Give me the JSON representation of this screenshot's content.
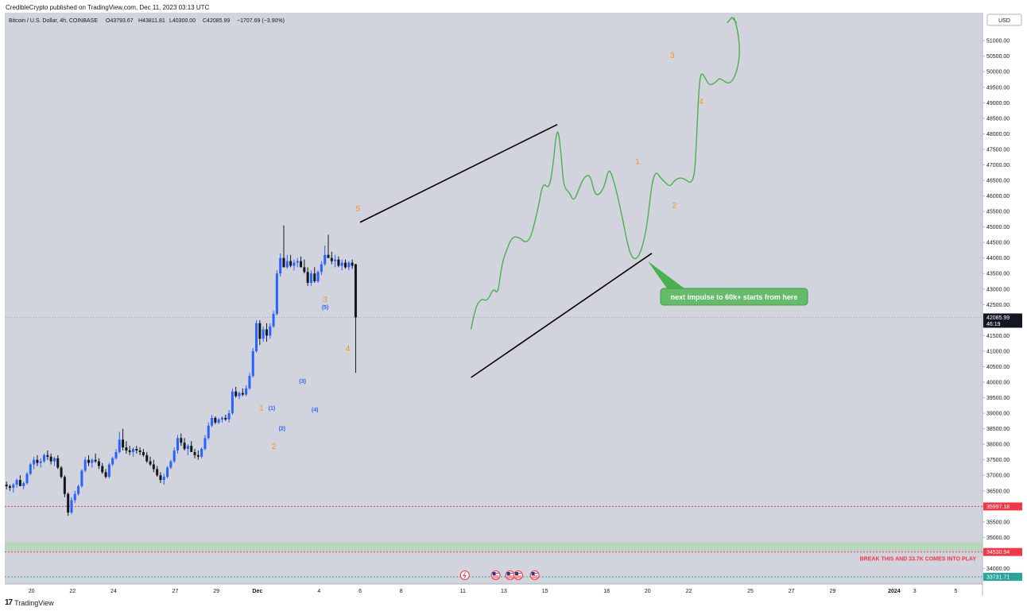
{
  "publisher": "CredibleCrypto published on TradingView.com, Dec 11, 2023 03:13 UTC",
  "footer_brand": "TradingView",
  "footer_logo": "17",
  "chart_data": {
    "type": "candlestick",
    "legend": "Bitcoin / U.S. Dollar, 4h, COINBASE",
    "ohlc_legend": {
      "o": "O43793.67",
      "h": "H43811.81",
      "l": "L40300.00",
      "c": "C42085.99",
      "chg": "−1707.69 (−3.90%)"
    },
    "currency": "USD",
    "ylim": [
      33500,
      51900
    ],
    "y_ticks": [
      "34000.00",
      "34500.00",
      "35000.00",
      "35500.00",
      "36000.00",
      "36500.00",
      "37000.00",
      "37500.00",
      "38000.00",
      "38500.00",
      "39000.00",
      "39500.00",
      "40000.00",
      "40500.00",
      "41000.00",
      "41500.00",
      "42000.00",
      "42500.00",
      "43000.00",
      "43500.00",
      "44000.00",
      "44500.00",
      "45000.00",
      "45500.00",
      "46000.00",
      "46500.00",
      "47000.00",
      "47500.00",
      "48000.00",
      "48500.00",
      "49000.00",
      "49500.00",
      "50000.00",
      "50500.00",
      "51000.00"
    ],
    "x_ticks": [
      {
        "label": "20",
        "day": 20
      },
      {
        "label": "22",
        "day": 22
      },
      {
        "label": "24",
        "day": 24
      },
      {
        "label": "27",
        "day": 27
      },
      {
        "label": "29",
        "day": 29
      },
      {
        "label": "Dec",
        "day": 31
      },
      {
        "label": "4",
        "day": 34
      },
      {
        "label": "6",
        "day": 36
      },
      {
        "label": "8",
        "day": 38
      },
      {
        "label": "11",
        "day": 41
      },
      {
        "label": "13",
        "day": 43
      },
      {
        "label": "15",
        "day": 45
      },
      {
        "label": "18",
        "day": 48
      },
      {
        "label": "20",
        "day": 50
      },
      {
        "label": "22",
        "day": 52
      },
      {
        "label": "25",
        "day": 55
      },
      {
        "label": "27",
        "day": 57
      },
      {
        "label": "29",
        "day": 59
      },
      {
        "label": "2024",
        "day": 62
      },
      {
        "label": "3",
        "day": 63
      },
      {
        "label": "5",
        "day": 65
      }
    ],
    "x_range_days": [
      18.7,
      66.3
    ],
    "price_labels": [
      {
        "value": 42085.99,
        "text": "42085.99",
        "sub": "46:19",
        "color": "#131722"
      },
      {
        "value": 35997.18,
        "text": "35997.18",
        "color": "#f23645"
      },
      {
        "value": 34530.94,
        "text": "34530.94",
        "color": "#f23645"
      },
      {
        "value": 33731.71,
        "text": "33731.71",
        "color": "#26a69a"
      }
    ],
    "support_zone": [
      34550,
      34850
    ],
    "hlines": [
      {
        "value": 35997.18,
        "color": "#f23645"
      },
      {
        "value": 34530.94,
        "color": "#f23645"
      },
      {
        "value": 33731.71,
        "color": "#26a69a"
      }
    ],
    "annotation_note": "BREAK THIS AND 33.7K COMES INTO PLAY",
    "callout": "next impulse to 60k+ starts from here",
    "colors": {
      "up": "#2962ff",
      "down": "#131722",
      "projection": "#4caf50",
      "wave_major": "#f7931a",
      "wave_minor": "#2962ff",
      "background": "#d1d4dc"
    },
    "candles": [
      [
        36700,
        36800,
        36550,
        36650
      ],
      [
        36650,
        36700,
        36500,
        36600
      ],
      [
        36600,
        36750,
        36450,
        36700
      ],
      [
        36700,
        36900,
        36600,
        36850
      ],
      [
        36850,
        37000,
        36700,
        36650
      ],
      [
        36650,
        36800,
        36550,
        36750
      ],
      [
        36750,
        37100,
        36700,
        37050
      ],
      [
        37050,
        37400,
        37000,
        37350
      ],
      [
        37350,
        37600,
        37200,
        37500
      ],
      [
        37500,
        37650,
        37300,
        37400
      ],
      [
        37400,
        37550,
        37250,
        37450
      ],
      [
        37450,
        37700,
        37400,
        37650
      ],
      [
        37650,
        37800,
        37500,
        37600
      ],
      [
        37600,
        37700,
        37350,
        37450
      ],
      [
        37450,
        37600,
        37300,
        37550
      ],
      [
        37550,
        37650,
        37200,
        37250
      ],
      [
        37250,
        37300,
        36900,
        36950
      ],
      [
        36950,
        37000,
        36300,
        36400
      ],
      [
        36400,
        36450,
        35700,
        35800
      ],
      [
        35800,
        36300,
        35750,
        36200
      ],
      [
        36200,
        36500,
        36100,
        36400
      ],
      [
        36400,
        36700,
        36350,
        36650
      ],
      [
        36650,
        37200,
        36600,
        37150
      ],
      [
        37150,
        37600,
        37100,
        37500
      ],
      [
        37500,
        37650,
        37300,
        37400
      ],
      [
        37400,
        37550,
        37250,
        37500
      ],
      [
        37500,
        37700,
        37400,
        37450
      ],
      [
        37450,
        37550,
        37200,
        37300
      ],
      [
        37300,
        37400,
        37050,
        37100
      ],
      [
        37100,
        37200,
        36900,
        36950
      ],
      [
        36950,
        37400,
        36900,
        37350
      ],
      [
        37350,
        37600,
        37300,
        37550
      ],
      [
        37550,
        37850,
        37500,
        37750
      ],
      [
        37750,
        38400,
        37700,
        38150
      ],
      [
        38150,
        38500,
        37800,
        37900
      ],
      [
        37900,
        38100,
        37700,
        37800
      ],
      [
        37800,
        37950,
        37650,
        37750
      ],
      [
        37750,
        37900,
        37600,
        37850
      ],
      [
        37850,
        37950,
        37700,
        37800
      ],
      [
        37800,
        37900,
        37650,
        37750
      ],
      [
        37750,
        37850,
        37600,
        37650
      ],
      [
        37650,
        37750,
        37400,
        37450
      ],
      [
        37450,
        37600,
        37300,
        37350
      ],
      [
        37350,
        37500,
        37100,
        37200
      ],
      [
        37200,
        37300,
        36950,
        37000
      ],
      [
        37000,
        37100,
        36750,
        36850
      ],
      [
        36850,
        37050,
        36700,
        36950
      ],
      [
        36950,
        37300,
        36900,
        37250
      ],
      [
        37250,
        37500,
        37200,
        37450
      ],
      [
        37450,
        37900,
        37400,
        37800
      ],
      [
        37800,
        38300,
        37700,
        38200
      ],
      [
        38200,
        38350,
        37950,
        38050
      ],
      [
        38050,
        38200,
        37800,
        37850
      ],
      [
        37850,
        38000,
        37650,
        37950
      ],
      [
        37950,
        38100,
        37800,
        37750
      ],
      [
        37750,
        37850,
        37550,
        37650
      ],
      [
        37650,
        37800,
        37500,
        37600
      ],
      [
        37600,
        37900,
        37550,
        37850
      ],
      [
        37850,
        38300,
        37800,
        38200
      ],
      [
        38200,
        38700,
        38150,
        38600
      ],
      [
        38600,
        38950,
        38550,
        38850
      ],
      [
        38850,
        38900,
        38650,
        38700
      ],
      [
        38700,
        38850,
        38650,
        38800
      ],
      [
        38800,
        38900,
        38700,
        38850
      ],
      [
        38850,
        38950,
        38750,
        38800
      ],
      [
        38800,
        39100,
        38700,
        39000
      ],
      [
        39000,
        39800,
        38950,
        39700
      ],
      [
        39700,
        39850,
        39500,
        39550
      ],
      [
        39550,
        39700,
        39450,
        39650
      ],
      [
        39650,
        39800,
        39550,
        39600
      ],
      [
        39600,
        39900,
        39550,
        39800
      ],
      [
        39800,
        40300,
        39750,
        40200
      ],
      [
        40200,
        41100,
        40150,
        41000
      ],
      [
        41000,
        42000,
        40950,
        41900
      ],
      [
        41900,
        42000,
        41200,
        41400
      ],
      [
        41400,
        41800,
        41300,
        41700
      ],
      [
        41700,
        41900,
        41300,
        41500
      ],
      [
        41500,
        41900,
        41400,
        41800
      ],
      [
        41800,
        42300,
        41750,
        42200
      ],
      [
        42200,
        43600,
        42150,
        43500
      ],
      [
        43500,
        44150,
        43400,
        44000
      ],
      [
        44000,
        45050,
        43850,
        43700
      ],
      [
        43700,
        44100,
        43650,
        43900
      ],
      [
        43900,
        44100,
        43700,
        43750
      ],
      [
        43750,
        43950,
        43600,
        43850
      ],
      [
        43850,
        44000,
        43700,
        43900
      ],
      [
        43900,
        44050,
        43750,
        43700
      ],
      [
        43700,
        43950,
        43500,
        43550
      ],
      [
        43550,
        43700,
        43100,
        43200
      ],
      [
        43200,
        43600,
        43100,
        43500
      ],
      [
        43500,
        43700,
        43200,
        43250
      ],
      [
        43250,
        43600,
        43200,
        43550
      ],
      [
        43550,
        43900,
        43450,
        43800
      ],
      [
        43800,
        44400,
        43750,
        44100
      ],
      [
        44100,
        44750,
        44000,
        44000
      ],
      [
        44000,
        44200,
        43800,
        43900
      ],
      [
        43900,
        44100,
        43700,
        43950
      ],
      [
        43950,
        44050,
        43700,
        43750
      ],
      [
        43750,
        43950,
        43600,
        43850
      ],
      [
        43850,
        43950,
        43650,
        43700
      ],
      [
        43700,
        43900,
        43600,
        43850
      ],
      [
        43850,
        43950,
        43650,
        43750
      ],
      [
        43800,
        43811,
        40300,
        42086
      ]
    ],
    "wave_labels": [
      {
        "text": "1",
        "day": 31.2,
        "price": 39080,
        "kind": "major"
      },
      {
        "text": "2",
        "day": 31.8,
        "price": 37850,
        "kind": "major"
      },
      {
        "text": "3",
        "day": 34.3,
        "price": 42570,
        "kind": "major"
      },
      {
        "text": "4",
        "day": 35.4,
        "price": 41000,
        "kind": "major"
      },
      {
        "text": "5",
        "day": 35.9,
        "price": 45500,
        "kind": "major"
      },
      {
        "text": "(1)",
        "day": 31.7,
        "price": 39100,
        "kind": "minor"
      },
      {
        "text": "(2)",
        "day": 32.2,
        "price": 38450,
        "kind": "minor"
      },
      {
        "text": "(3)",
        "day": 33.2,
        "price": 39980,
        "kind": "minor"
      },
      {
        "text": "(4)",
        "day": 33.8,
        "price": 39050,
        "kind": "minor"
      },
      {
        "text": "(5)",
        "day": 34.3,
        "price": 42350,
        "kind": "minor"
      },
      {
        "text": "1",
        "day": 49.5,
        "price": 47030,
        "kind": "major"
      },
      {
        "text": "2",
        "day": 51.3,
        "price": 45620,
        "kind": "major"
      },
      {
        "text": "3",
        "day": 51.2,
        "price": 50440,
        "kind": "major"
      },
      {
        "text": "4",
        "day": 52.6,
        "price": 48960,
        "kind": "major"
      }
    ],
    "projection_path": [
      [
        41.4,
        41700
      ],
      [
        41.6,
        42400
      ],
      [
        41.9,
        42700
      ],
      [
        42.2,
        42600
      ],
      [
        42.5,
        43050
      ],
      [
        42.7,
        42800
      ],
      [
        42.9,
        43800
      ],
      [
        43.1,
        44200
      ],
      [
        43.4,
        44700
      ],
      [
        43.8,
        44650
      ],
      [
        44.0,
        44500
      ],
      [
        44.3,
        44600
      ],
      [
        44.7,
        45700
      ],
      [
        44.9,
        46450
      ],
      [
        45.2,
        46200
      ],
      [
        45.4,
        47000
      ],
      [
        45.6,
        48350
      ],
      [
        45.8,
        47300
      ],
      [
        45.9,
        46300
      ],
      [
        46.2,
        46100
      ],
      [
        46.4,
        45800
      ],
      [
        46.7,
        46300
      ],
      [
        46.9,
        46600
      ],
      [
        47.2,
        46700
      ],
      [
        47.4,
        46100
      ],
      [
        47.6,
        46000
      ],
      [
        47.9,
        46300
      ],
      [
        48.1,
        46900
      ],
      [
        48.3,
        46600
      ],
      [
        48.5,
        46100
      ],
      [
        48.8,
        45200
      ],
      [
        49.0,
        44500
      ],
      [
        49.2,
        44050
      ],
      [
        49.4,
        43950
      ],
      [
        49.6,
        44100
      ],
      [
        49.8,
        44500
      ],
      [
        50.0,
        45200
      ],
      [
        50.2,
        46400
      ],
      [
        50.4,
        46800
      ],
      [
        50.6,
        46600
      ],
      [
        50.9,
        46400
      ],
      [
        51.1,
        46300
      ],
      [
        51.3,
        46500
      ],
      [
        51.6,
        46600
      ],
      [
        51.9,
        46500
      ],
      [
        52.1,
        46400
      ],
      [
        52.3,
        46700
      ],
      [
        52.4,
        48200
      ],
      [
        52.5,
        49500
      ],
      [
        52.6,
        50000
      ],
      [
        52.8,
        49800
      ],
      [
        53.0,
        49550
      ],
      [
        53.3,
        49650
      ],
      [
        53.5,
        49800
      ],
      [
        53.7,
        49700
      ],
      [
        54.0,
        49600
      ],
      [
        54.3,
        49900
      ],
      [
        54.5,
        50550
      ],
      [
        54.4,
        51300
      ],
      [
        54.2,
        51750
      ]
    ],
    "arrow_tip": [
      54.1,
      51750
    ],
    "trendlines": [
      {
        "from": [
          36.0,
          45150
        ],
        "to": [
          45.6,
          48300
        ]
      },
      {
        "from": [
          41.4,
          40150
        ],
        "to": [
          50.2,
          44150
        ]
      }
    ],
    "event_icons": [
      {
        "day": 41.1,
        "kind": "bitcoin"
      },
      {
        "day": 42.6,
        "kind": "us-flag"
      },
      {
        "day": 43.3,
        "kind": "us-flag"
      },
      {
        "day": 43.7,
        "kind": "us-flag"
      },
      {
        "day": 44.5,
        "kind": "us-flag"
      }
    ]
  }
}
